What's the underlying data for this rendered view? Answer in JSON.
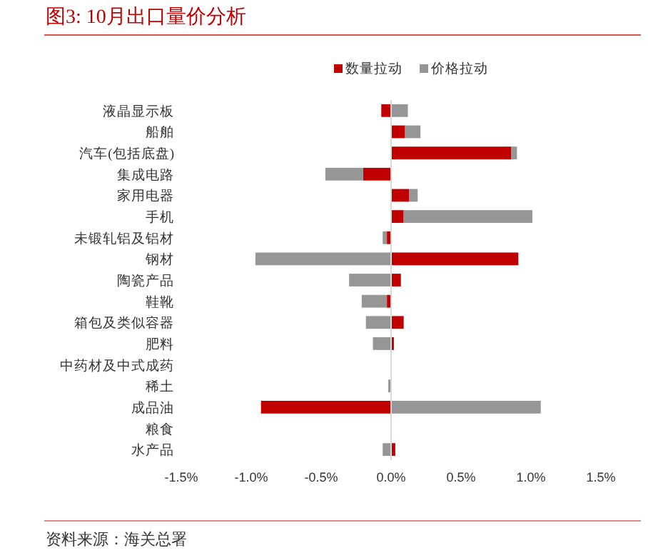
{
  "chart_data": {
    "type": "bar",
    "orientation": "horizontal",
    "stacked": true,
    "title": "图3:  10月出口量价分析",
    "annotations": [
      "资料来源：海关总署"
    ],
    "categories": [
      "液晶显示板",
      "船舶",
      "汽车(包括底盘)",
      "集成电路",
      "家用电器",
      "手机",
      "未锻轧铝及铝材",
      "钢材",
      "陶瓷产品",
      "鞋靴",
      "箱包及类似容器",
      "肥料",
      "中药材及中式成药",
      "稀土",
      "成品油",
      "粮食",
      "水产品"
    ],
    "series": [
      {
        "name": "数量拉动",
        "color": "#c00000",
        "values": [
          -0.07,
          0.1,
          0.86,
          -0.2,
          0.13,
          0.09,
          -0.03,
          0.91,
          0.07,
          -0.03,
          0.09,
          0.02,
          null,
          null,
          -0.93,
          null,
          0.03
        ]
      },
      {
        "name": "价格拉动",
        "color": "#969696",
        "values": [
          0.12,
          0.11,
          0.04,
          -0.27,
          0.06,
          0.92,
          -0.03,
          -0.97,
          -0.3,
          -0.18,
          -0.18,
          -0.13,
          null,
          -0.02,
          1.07,
          null,
          -0.06
        ]
      }
    ],
    "ref_lines": [
      {
        "axis": "x",
        "value": 0,
        "color": "#d9d9d9"
      }
    ],
    "xlim": [
      -1.5,
      1.5
    ],
    "xticks": [
      {
        "value": -1.5,
        "label": "-1.5%"
      },
      {
        "value": -1.0,
        "label": "-1.0%"
      },
      {
        "value": -0.5,
        "label": "-0.5%"
      },
      {
        "value": 0,
        "label": "0.0%"
      },
      {
        "value": 0.5,
        "label": "0.5%"
      },
      {
        "value": 1.0,
        "label": "1.0%"
      },
      {
        "value": 1.5,
        "label": "1.5%"
      }
    ],
    "grid": false,
    "legend": "top"
  }
}
